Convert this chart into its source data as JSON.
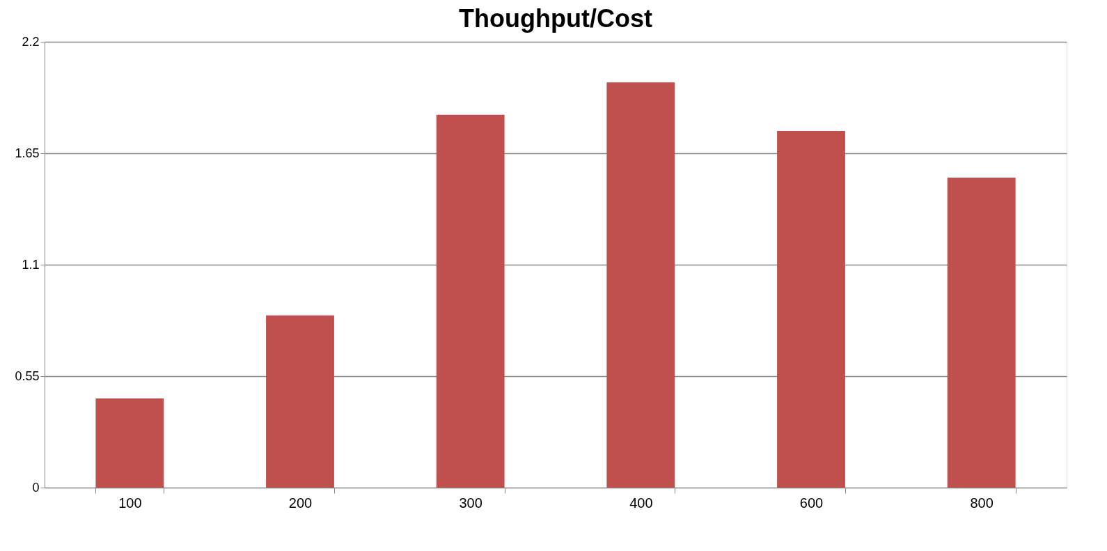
{
  "chart_data": {
    "type": "bar",
    "title": "Thoughput/Cost",
    "categories": [
      "100",
      "200",
      "300",
      "400",
      "600",
      "800"
    ],
    "values": [
      0.44,
      0.85,
      1.84,
      2.0,
      1.76,
      1.53
    ],
    "color": "#c0504d",
    "ylim": [
      0,
      2.2
    ],
    "yticks": [
      0,
      0.55,
      1.1,
      1.65,
      2.2
    ],
    "grid": "y"
  }
}
